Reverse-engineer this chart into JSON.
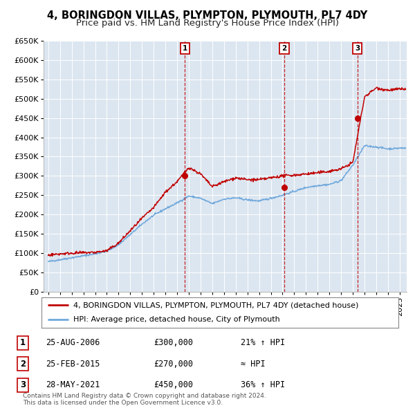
{
  "title": "4, BORINGDON VILLAS, PLYMPTON, PLYMOUTH, PL7 4DY",
  "subtitle": "Price paid vs. HM Land Registry's House Price Index (HPI)",
  "background_color": "#ffffff",
  "plot_bg_color": "#dce6f0",
  "grid_color": "#ffffff",
  "ylim": [
    0,
    650000
  ],
  "yticks": [
    0,
    50000,
    100000,
    150000,
    200000,
    250000,
    300000,
    350000,
    400000,
    450000,
    500000,
    550000,
    600000,
    650000
  ],
  "xlim_start": 1994.6,
  "xlim_end": 2025.6,
  "sale_color": "#c00000",
  "hpi_color": "#6fa8dc",
  "purchases": [
    {
      "date": 2006.65,
      "price": 300000,
      "label": "1"
    },
    {
      "date": 2015.15,
      "price": 270000,
      "label": "2"
    },
    {
      "date": 2021.4,
      "price": 450000,
      "label": "3"
    }
  ],
  "legend_entries": [
    "4, BORINGDON VILLAS, PLYMPTON, PLYMOUTH, PL7 4DY (detached house)",
    "HPI: Average price, detached house, City of Plymouth"
  ],
  "table_rows": [
    {
      "num": "1",
      "date": "25-AUG-2006",
      "price": "£300,000",
      "hpi": "21% ↑ HPI"
    },
    {
      "num": "2",
      "date": "25-FEB-2015",
      "price": "£270,000",
      "hpi": "≈ HPI"
    },
    {
      "num": "3",
      "date": "28-MAY-2021",
      "price": "£450,000",
      "hpi": "36% ↑ HPI"
    }
  ],
  "footnote": "Contains HM Land Registry data © Crown copyright and database right 2024.\nThis data is licensed under the Open Government Licence v3.0.",
  "title_fontsize": 10.5,
  "subtitle_fontsize": 9.5,
  "tick_fontsize": 8,
  "legend_fontsize": 8,
  "table_fontsize": 8.5
}
